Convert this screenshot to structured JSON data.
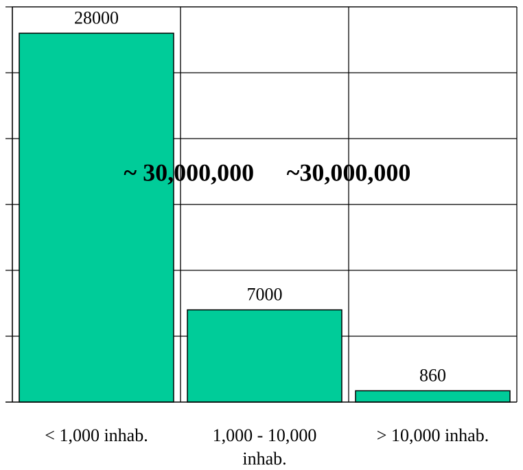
{
  "chart_data": {
    "type": "bar",
    "categories": [
      "< 1,000 inhab.",
      "1,000 - 10,000 inhab.",
      "> 10,000 inhab."
    ],
    "category_lines": [
      [
        "< 1,000 inhab."
      ],
      [
        "1,000 - 10,000",
        "inhab."
      ],
      [
        "> 10,000 inhab."
      ]
    ],
    "values": [
      28000,
      7000,
      860
    ],
    "data_labels": [
      "28000",
      "7000",
      "860"
    ],
    "ylim": [
      0,
      30000
    ],
    "y_gridlines": [
      5000,
      10000,
      15000,
      20000,
      25000,
      30000
    ],
    "grid": true,
    "legend": "none",
    "title": "",
    "xlabel": "",
    "ylabel": "",
    "annotations": [
      {
        "text": "~ 30,000,000",
        "x_category_center": 1.05,
        "y": 16800
      },
      {
        "text": "~30,000,000",
        "x_category_center": 2.0,
        "y": 16800
      }
    ]
  },
  "colors": {
    "bar_fill": "#00cc99",
    "bar_stroke": "#000000",
    "grid": "#000000",
    "background": "#ffffff"
  }
}
